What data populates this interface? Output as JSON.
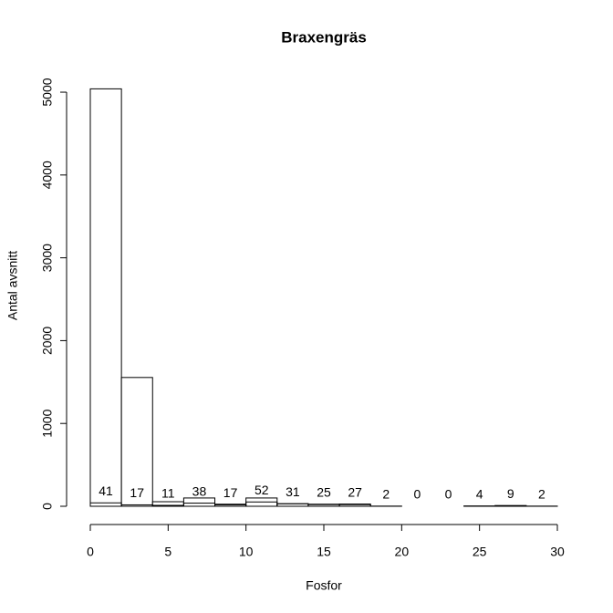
{
  "chart_data": {
    "type": "histogram",
    "title": "Braxengräs",
    "x_label": "Fosfor",
    "y_label": "Antal avsnitt",
    "bins": [
      0,
      2,
      4,
      6,
      8,
      10,
      12,
      14,
      16,
      18,
      20,
      22,
      24,
      26,
      28,
      30
    ],
    "series": [
      {
        "color": "#ffffff",
        "values": [
          5040,
          1555,
          55,
          100,
          25,
          100,
          30,
          20,
          20,
          0,
          0,
          0,
          0,
          0,
          0
        ]
      },
      {
        "color": "#ffffff",
        "values": [
          41,
          17,
          11,
          38,
          17,
          52,
          31,
          25,
          27,
          2,
          0,
          0,
          4,
          9,
          2
        ]
      }
    ],
    "labeled_series": 1,
    "xlim": [
      0,
      30
    ],
    "xticks": [
      0,
      5,
      10,
      15,
      20,
      25,
      30
    ],
    "ylim": [
      0,
      5050
    ],
    "yticks": [
      0,
      1000,
      2000,
      3000,
      4000,
      5000
    ],
    "grid": false
  }
}
